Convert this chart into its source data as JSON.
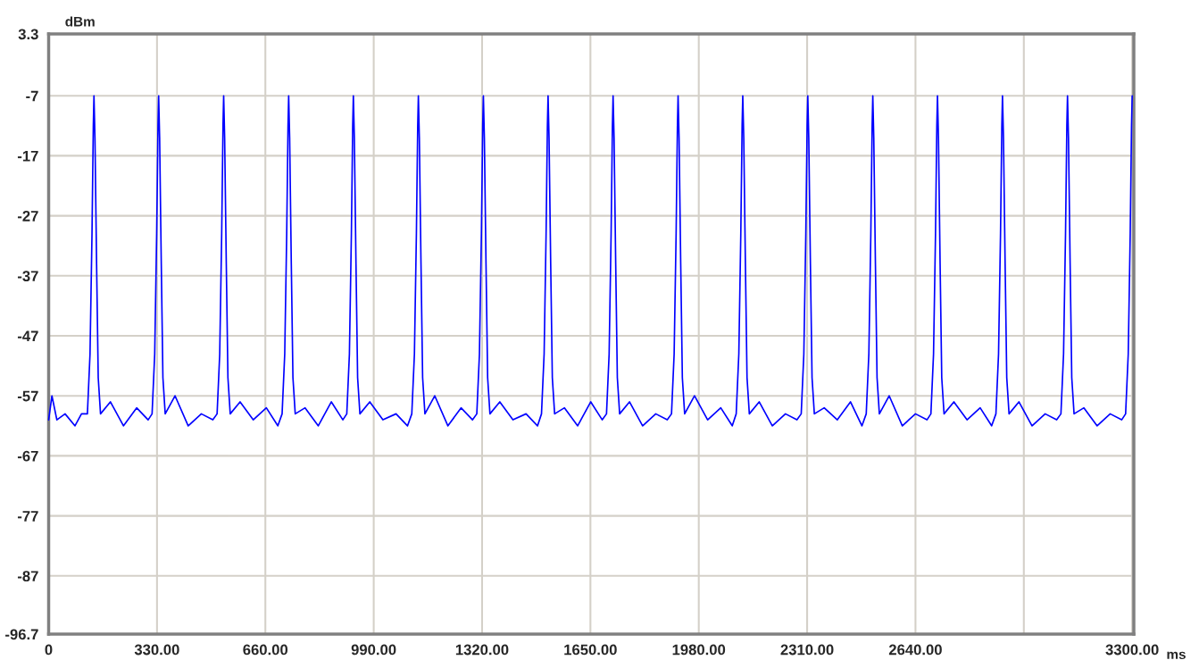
{
  "chart_data": {
    "type": "line",
    "xlabel": "ms",
    "ylabel": "dBm",
    "x": [
      0,
      10,
      25,
      50,
      80,
      100,
      118,
      126,
      132,
      136,
      138,
      141,
      146,
      151,
      158,
      188,
      228,
      268,
      303,
      315,
      323,
      329,
      333,
      335,
      338,
      343,
      348,
      355,
      385,
      425,
      465,
      500,
      513,
      521,
      527,
      531,
      533,
      536,
      541,
      546,
      553,
      583,
      623,
      663,
      698,
      711,
      719,
      725,
      729,
      731,
      734,
      739,
      744,
      751,
      781,
      821,
      861,
      896,
      908,
      916,
      922,
      926,
      928,
      931,
      936,
      941,
      948,
      978,
      1018,
      1058,
      1093,
      1106,
      1114,
      1120,
      1124,
      1126,
      1129,
      1134,
      1139,
      1146,
      1176,
      1216,
      1256,
      1291,
      1304,
      1312,
      1318,
      1322,
      1324,
      1327,
      1332,
      1337,
      1344,
      1374,
      1414,
      1454,
      1489,
      1501,
      1509,
      1515,
      1519,
      1521,
      1524,
      1529,
      1534,
      1541,
      1571,
      1611,
      1651,
      1686,
      1699,
      1707,
      1713,
      1717,
      1719,
      1722,
      1727,
      1732,
      1739,
      1769,
      1809,
      1849,
      1884,
      1897,
      1905,
      1911,
      1915,
      1917,
      1920,
      1925,
      1930,
      1937,
      1967,
      2007,
      2047,
      2082,
      2094,
      2102,
      2108,
      2112,
      2114,
      2117,
      2122,
      2127,
      2134,
      2164,
      2204,
      2244,
      2279,
      2292,
      2300,
      2306,
      2310,
      2312,
      2315,
      2320,
      2325,
      2332,
      2362,
      2402,
      2442,
      2477,
      2490,
      2498,
      2504,
      2508,
      2510,
      2513,
      2518,
      2523,
      2530,
      2560,
      2600,
      2640,
      2675,
      2687,
      2695,
      2701,
      2705,
      2707,
      2710,
      2715,
      2720,
      2727,
      2757,
      2797,
      2837,
      2872,
      2885,
      2893,
      2899,
      2903,
      2905,
      2908,
      2913,
      2918,
      2925,
      2955,
      2995,
      3035,
      3070,
      3083,
      3091,
      3097,
      3101,
      3103,
      3106,
      3111,
      3116,
      3123,
      3153,
      3193,
      3233,
      3268,
      3280,
      3288,
      3294,
      3298,
      3300
    ],
    "series": [
      {
        "color": "#0000ff",
        "values": [
          -61,
          -57,
          -61,
          -60,
          -62,
          -60,
          -60,
          -50,
          -30,
          -12,
          -7,
          -14,
          -35,
          -54,
          -60,
          -58,
          -62,
          -59,
          -61,
          -60,
          -50,
          -30,
          -12,
          -7,
          -14,
          -35,
          -54,
          -60,
          -57,
          -62,
          -60,
          -61,
          -60,
          -50,
          -30,
          -12,
          -7,
          -14,
          -35,
          -54,
          -60,
          -58,
          -61,
          -59,
          -62,
          -60,
          -50,
          -30,
          -12,
          -7,
          -14,
          -35,
          -54,
          -60,
          -59,
          -62,
          -58,
          -61,
          -60,
          -50,
          -30,
          -12,
          -7,
          -14,
          -35,
          -54,
          -60,
          -58,
          -61,
          -60,
          -62,
          -60,
          -50,
          -30,
          -12,
          -7,
          -14,
          -35,
          -54,
          -60,
          -57,
          -62,
          -59,
          -61,
          -60,
          -50,
          -30,
          -12,
          -7,
          -14,
          -35,
          -54,
          -60,
          -58,
          -61,
          -60,
          -62,
          -60,
          -50,
          -30,
          -12,
          -7,
          -14,
          -35,
          -54,
          -60,
          -59,
          -62,
          -58,
          -61,
          -60,
          -50,
          -30,
          -12,
          -7,
          -14,
          -35,
          -54,
          -60,
          -58,
          -62,
          -60,
          -61,
          -60,
          -50,
          -30,
          -12,
          -7,
          -14,
          -35,
          -54,
          -60,
          -57,
          -61,
          -59,
          -62,
          -60,
          -50,
          -30,
          -12,
          -7,
          -14,
          -35,
          -54,
          -60,
          -58,
          -62,
          -60,
          -61,
          -60,
          -50,
          -30,
          -12,
          -7,
          -14,
          -35,
          -54,
          -60,
          -59,
          -61,
          -58,
          -62,
          -60,
          -50,
          -30,
          -12,
          -7,
          -14,
          -35,
          -54,
          -60,
          -57,
          -62,
          -60,
          -61,
          -60,
          -50,
          -30,
          -12,
          -7,
          -14,
          -35,
          -54,
          -60,
          -58,
          -61,
          -59,
          -62,
          -60,
          -50,
          -30,
          -12,
          -7,
          -14,
          -35,
          -54,
          -60,
          -58,
          -62,
          -60,
          -61,
          -60,
          -50,
          -30,
          -12,
          -7,
          -14,
          -35,
          -54,
          -60,
          -59,
          -62,
          -60,
          -61,
          -60,
          -50,
          -30,
          -12,
          -7
        ]
      }
    ],
    "xlim": [
      0,
      3305
    ],
    "ylim": [
      -96.7,
      3.3
    ],
    "xticks": [
      0,
      {
        "value": 330,
        "label": "330.00"
      },
      {
        "value": 660,
        "label": "660.00"
      },
      {
        "value": 990,
        "label": "990.00"
      },
      {
        "value": 1320,
        "label": "1320.00"
      },
      {
        "value": 1650,
        "label": "1650.00"
      },
      {
        "value": 1980,
        "label": "1980.00"
      },
      {
        "value": 2310,
        "label": "2310.00"
      },
      {
        "value": 2640,
        "label": "2640.00"
      },
      {
        "value": 2970,
        "label": null
      },
      {
        "value": 3300,
        "label": "3300.00"
      }
    ],
    "yticks": [
      -96.7,
      -87,
      -77,
      -67,
      -57,
      -47,
      -37,
      -27,
      -17,
      -7,
      3.3
    ],
    "grid": true
  }
}
